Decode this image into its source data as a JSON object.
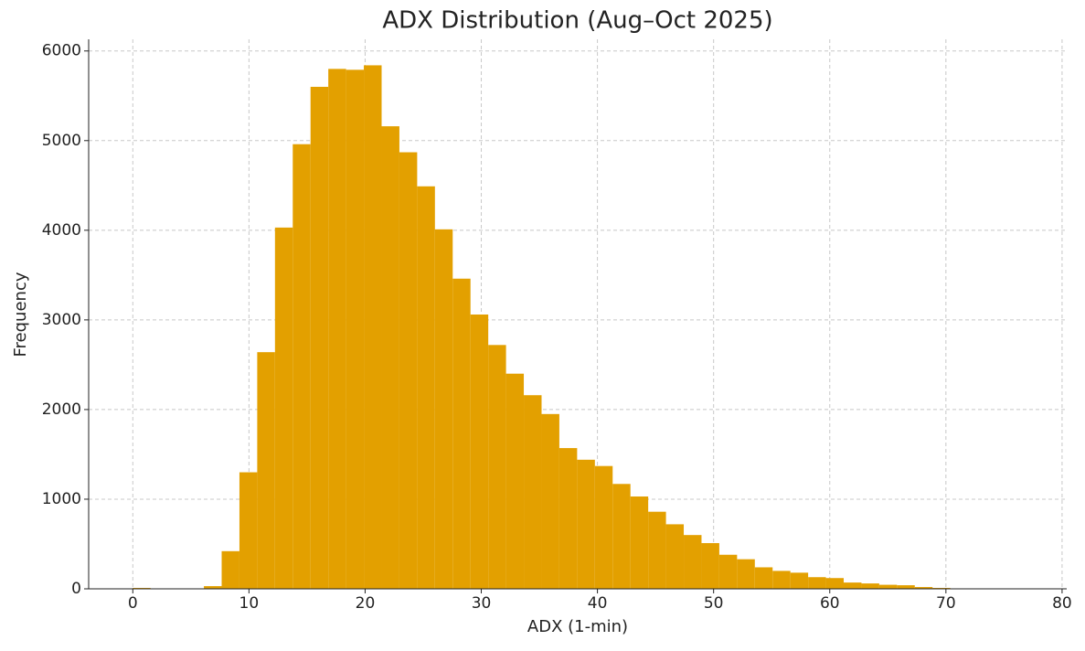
{
  "chart_data": {
    "type": "histogram",
    "title": "ADX Distribution (Aug–Oct 2025)",
    "x_label": "ADX (1-min)",
    "y_label": "Frequency",
    "bins": [
      0,
      1.53,
      3.06,
      4.59,
      6.12,
      7.65,
      9.18,
      10.71,
      12.24,
      13.77,
      15.3,
      16.83,
      18.36,
      19.89,
      21.42,
      22.95,
      24.48,
      26.01,
      27.54,
      29.07,
      30.6,
      32.13,
      33.66,
      35.19,
      36.72,
      38.25,
      39.78,
      41.31,
      42.84,
      44.37,
      45.9,
      47.43,
      48.96,
      50.49,
      52.02,
      53.55,
      55.08,
      56.61,
      58.14,
      59.67,
      61.2,
      62.73,
      64.26,
      65.79,
      67.32,
      68.85,
      70.38,
      71.91
    ],
    "values": [
      10,
      0,
      0,
      0,
      30,
      420,
      1300,
      2640,
      4030,
      4960,
      5600,
      5800,
      5790,
      5840,
      5160,
      4870,
      4490,
      4010,
      3460,
      3060,
      2720,
      2400,
      2160,
      1950,
      1570,
      1440,
      1370,
      1170,
      1030,
      860,
      720,
      600,
      510,
      380,
      330,
      240,
      200,
      180,
      130,
      120,
      70,
      60,
      45,
      40,
      20,
      10,
      5
    ],
    "color": "#e3a000",
    "xlim": [
      -3.8,
      80.4
    ],
    "xticks": [
      0,
      10,
      20,
      30,
      40,
      50,
      60,
      70,
      80
    ],
    "ylim": [
      0,
      6130
    ],
    "yticks": [
      0,
      1000,
      2000,
      3000,
      4000,
      5000,
      6000
    ],
    "grid": true
  }
}
